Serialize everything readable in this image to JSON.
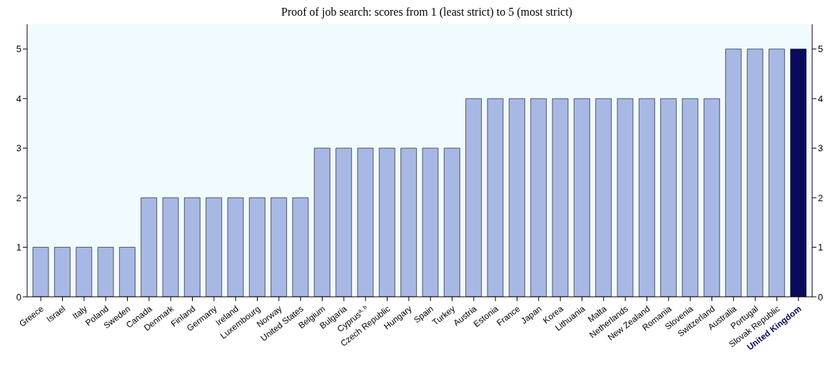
{
  "chart_data": {
    "type": "bar",
    "title": "Proof of job search: scores from 1 (least strict) to 5 (most strict)",
    "categories": [
      "Greece",
      "Israel",
      "Italy",
      "Poland",
      "Sweden",
      "Canada",
      "Denmark",
      "Finland",
      "Germany",
      "Ireland",
      "Luxembourg",
      "Norway",
      "United States",
      "Belgium",
      "Bulgaria",
      "Cyprus$^{a, b}$",
      "Czech Republic",
      "Hungary",
      "Spain",
      "Turkey",
      "Austria",
      "Estonia",
      "France",
      "Japan",
      "Korea",
      "Lithuania",
      "Malta",
      "Netherlands",
      "New Zealand",
      "Romania",
      "Slovenia",
      "Switzerland",
      "Australia",
      "Portugal",
      "Slovak Republic",
      "United Kingdom"
    ],
    "values": [
      1,
      1,
      1,
      1,
      1,
      2,
      2,
      2,
      2,
      2,
      2,
      2,
      2,
      3,
      3,
      3,
      3,
      3,
      3,
      3,
      4,
      4,
      4,
      4,
      4,
      4,
      4,
      4,
      4,
      4,
      4,
      4,
      5,
      5,
      5,
      5
    ],
    "colors": [
      "#a8b8e4",
      "#a8b8e4",
      "#a8b8e4",
      "#a8b8e4",
      "#a8b8e4",
      "#a8b8e4",
      "#a8b8e4",
      "#a8b8e4",
      "#a8b8e4",
      "#a8b8e4",
      "#a8b8e4",
      "#a8b8e4",
      "#a8b8e4",
      "#a8b8e4",
      "#a8b8e4",
      "#a8b8e4",
      "#a8b8e4",
      "#a8b8e4",
      "#a8b8e4",
      "#a8b8e4",
      "#a8b8e4",
      "#a8b8e4",
      "#a8b8e4",
      "#a8b8e4",
      "#a8b8e4",
      "#a8b8e4",
      "#a8b8e4",
      "#a8b8e4",
      "#a8b8e4",
      "#a8b8e4",
      "#a8b8e4",
      "#a8b8e4",
      "#a8b8e4",
      "#a8b8e4",
      "#a8b8e4",
      "#0a0a5c"
    ],
    "ylim": [
      0,
      5.5
    ],
    "yticks": [
      0,
      1,
      2,
      3,
      4,
      5
    ],
    "y2lim": [
      0,
      5.5
    ],
    "y2ticks": [
      0,
      1,
      2,
      3,
      4,
      5
    ],
    "grid": false
  }
}
